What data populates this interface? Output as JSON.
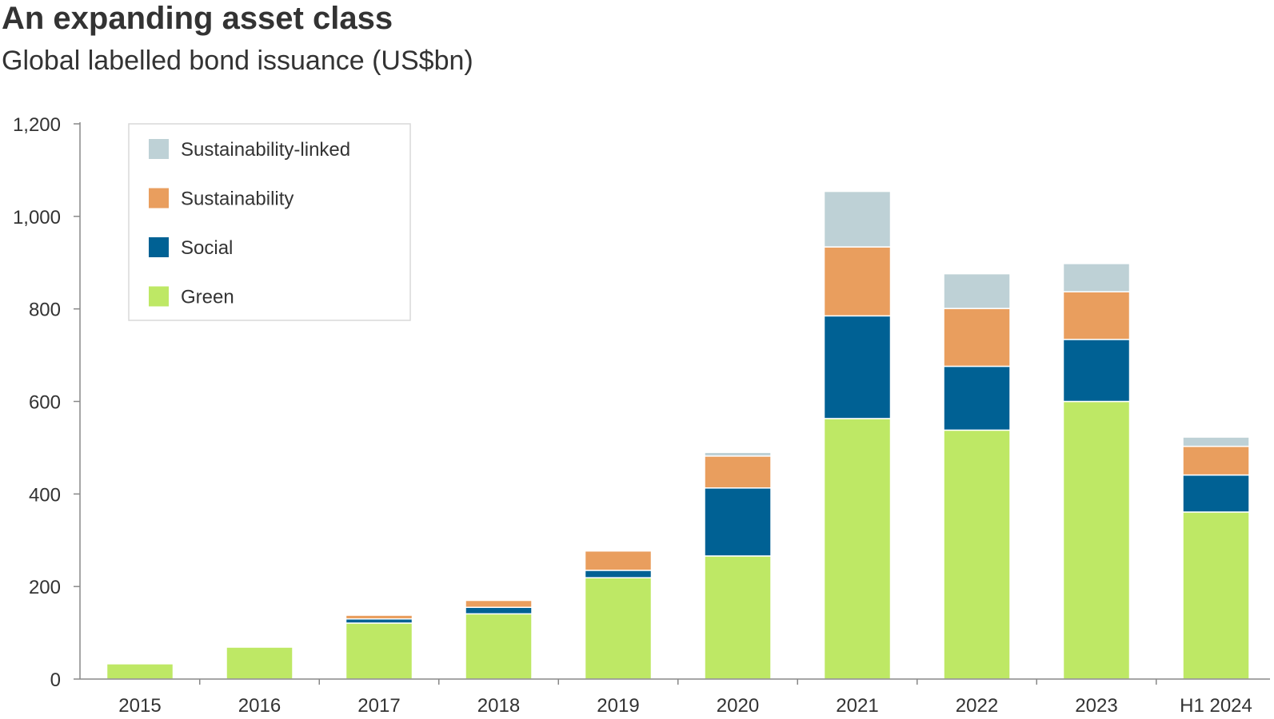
{
  "chart_data": {
    "type": "bar",
    "stacked": true,
    "title": "An expanding asset class",
    "subtitle": "Global labelled bond issuance (US$bn)",
    "categories": [
      "2015",
      "2016",
      "2017",
      "2018",
      "2019",
      "2020",
      "2021",
      "2022",
      "2023",
      "H1 2024"
    ],
    "series": [
      {
        "name": "Green",
        "color": "#bee865",
        "values": [
          33,
          69,
          121,
          141,
          219,
          266,
          563,
          538,
          600,
          361
        ]
      },
      {
        "name": "Social",
        "color": "#006194",
        "values": [
          0,
          0,
          9,
          14,
          16,
          147,
          222,
          138,
          134,
          80
        ]
      },
      {
        "name": "Sustainability",
        "color": "#e99e5e",
        "values": [
          0,
          0,
          8,
          15,
          42,
          69,
          149,
          125,
          103,
          62
        ]
      },
      {
        "name": "Sustainability-linked",
        "color": "#bed1d6",
        "values": [
          0,
          0,
          0,
          0,
          2,
          8,
          120,
          75,
          61,
          20
        ]
      }
    ],
    "legend_order": [
      "Sustainability-linked",
      "Sustainability",
      "Social",
      "Green"
    ],
    "legend_position": "top-left",
    "ylim": [
      0,
      1200
    ],
    "yticks": [
      0,
      200,
      400,
      600,
      800,
      1000,
      1200
    ],
    "ytick_labels": [
      "0",
      "200",
      "400",
      "600",
      "800",
      "1,000",
      "1,200"
    ],
    "xlabel": "",
    "ylabel": "",
    "grid": false
  }
}
